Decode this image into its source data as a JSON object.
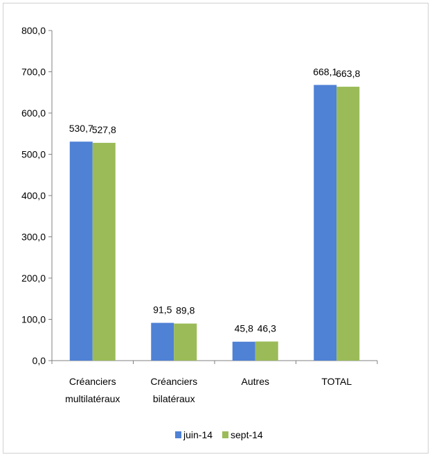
{
  "chart_data": {
    "type": "bar",
    "categories": [
      [
        "Créanciers",
        "multilatéraux"
      ],
      [
        "Créanciers",
        "bilatéraux"
      ],
      [
        "Autres"
      ],
      [
        "TOTAL"
      ]
    ],
    "series": [
      {
        "name": "juin-14",
        "color": "#4F81D5",
        "values": [
          530.7,
          91.5,
          45.8,
          668.1
        ],
        "labels": [
          "530,7",
          "91,5",
          "45,8",
          "668,1"
        ]
      },
      {
        "name": "sept-14",
        "color": "#9BBB59",
        "values": [
          527.8,
          89.8,
          46.3,
          663.8
        ],
        "labels": [
          "527,8",
          "89,8",
          "46,3",
          "663,8"
        ]
      }
    ],
    "ylim": [
      0,
      800
    ],
    "yticks": [
      0,
      100,
      200,
      300,
      400,
      500,
      600,
      700,
      800
    ],
    "ytick_labels": [
      "0,0",
      "100,0",
      "200,0",
      "300,0",
      "400,0",
      "500,0",
      "600,0",
      "700,0",
      "800,0"
    ],
    "legend_position": "bottom",
    "grid": false
  }
}
